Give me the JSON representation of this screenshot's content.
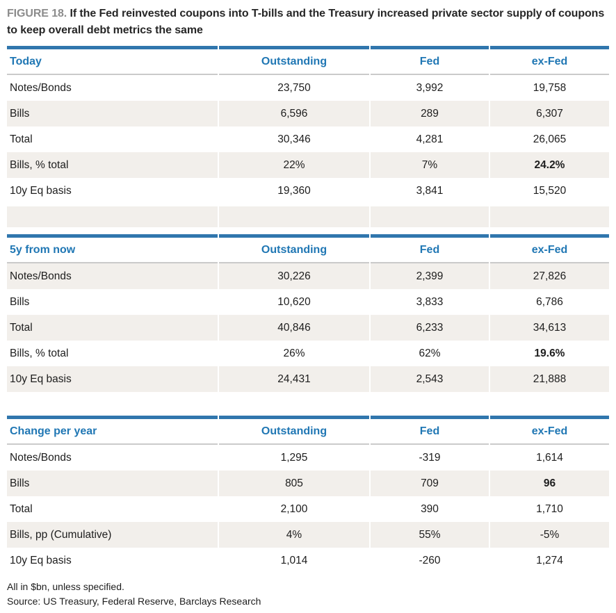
{
  "figure": {
    "label": "FIGURE 18.",
    "title": "If the Fed reinvested coupons into T-bills and the Treasury increased private sector supply of coupons to keep overall debt metrics the same"
  },
  "columns": {
    "c1": "Outstanding",
    "c2": "Fed",
    "c3": "ex-Fed"
  },
  "tables": [
    {
      "title": "Today",
      "rows": [
        {
          "label": "Notes/Bonds",
          "outstanding": "23,750",
          "fed": "3,992",
          "exfed": "19,758"
        },
        {
          "label": "Bills",
          "outstanding": "6,596",
          "fed": "289",
          "exfed": "6,307"
        },
        {
          "label": "Total",
          "outstanding": "30,346",
          "fed": "4,281",
          "exfed": "26,065"
        },
        {
          "label": "Bills, % total",
          "outstanding": "22%",
          "fed": "7%",
          "exfed": "24.2%"
        },
        {
          "label": "10y Eq basis",
          "outstanding": "19,360",
          "fed": "3,841",
          "exfed": "15,520"
        }
      ]
    },
    {
      "title": "5y from now",
      "rows": [
        {
          "label": "Notes/Bonds",
          "outstanding": "30,226",
          "fed": "2,399",
          "exfed": "27,826"
        },
        {
          "label": "Bills",
          "outstanding": "10,620",
          "fed": "3,833",
          "exfed": "6,786"
        },
        {
          "label": "Total",
          "outstanding": "40,846",
          "fed": "6,233",
          "exfed": "34,613"
        },
        {
          "label": "Bills, % total",
          "outstanding": "26%",
          "fed": "62%",
          "exfed": "19.6%"
        },
        {
          "label": "10y Eq basis",
          "outstanding": "24,431",
          "fed": "2,543",
          "exfed": "21,888"
        }
      ]
    },
    {
      "title": "Change per year",
      "rows": [
        {
          "label": "Notes/Bonds",
          "outstanding": "1,295",
          "fed": "-319",
          "exfed": "1,614"
        },
        {
          "label": "Bills",
          "outstanding": "805",
          "fed": "709",
          "exfed": "96"
        },
        {
          "label": "Total",
          "outstanding": "2,100",
          "fed": "390",
          "exfed": "1,710"
        },
        {
          "label": "Bills, pp (Cumulative)",
          "outstanding": "4%",
          "fed": "55%",
          "exfed": "-5%"
        },
        {
          "label": "10y Eq basis",
          "outstanding": "1,014",
          "fed": "-260",
          "exfed": "1,274"
        }
      ]
    }
  ],
  "footnotes": {
    "units": "All in $bn, unless specified.",
    "source": "Source: US Treasury, Federal Reserve, Barclays Research"
  },
  "colors": {
    "accent_blue": "#3076ad",
    "accent_text_blue": "#2077b4",
    "row_shade": "#f2efeb",
    "header_underline": "#cacaca",
    "figure_label_gray": "#8c8c8c"
  }
}
